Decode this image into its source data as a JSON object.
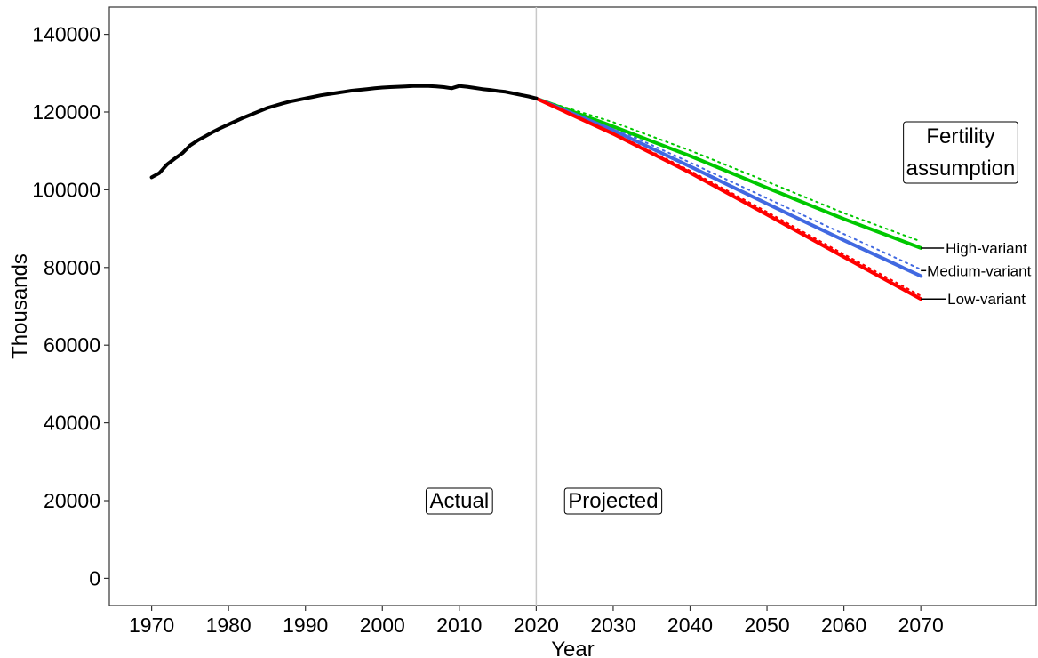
{
  "chart_data": {
    "type": "line",
    "xlabel": "Year",
    "ylabel": "Thousands",
    "xlim": [
      1964.5,
      2085
    ],
    "ylim": [
      -7000,
      147000
    ],
    "x_ticks": [
      1970,
      1980,
      1990,
      2000,
      2010,
      2020,
      2030,
      2040,
      2050,
      2060,
      2070
    ],
    "y_ticks": [
      0,
      20000,
      40000,
      60000,
      80000,
      100000,
      120000,
      140000
    ],
    "divider_year": 2020,
    "grid": false,
    "annotations": {
      "actual": "Actual",
      "projected": "Projected",
      "legend_title_line1": "Fertility",
      "legend_title_line2": "assumption"
    },
    "actual_series": {
      "color": "#000000",
      "x": [
        1970,
        1971,
        1972,
        1973,
        1974,
        1975,
        1976,
        1977,
        1978,
        1979,
        1980,
        1981,
        1982,
        1983,
        1984,
        1985,
        1986,
        1987,
        1988,
        1989,
        1990,
        1991,
        1992,
        1993,
        1994,
        1995,
        1996,
        1997,
        1998,
        1999,
        2000,
        2001,
        2002,
        2003,
        2004,
        2005,
        2006,
        2007,
        2008,
        2009,
        2010,
        2011,
        2012,
        2013,
        2014,
        2015,
        2016,
        2017,
        2018,
        2019,
        2020
      ],
      "y": [
        103200,
        104300,
        106500,
        108000,
        109400,
        111400,
        112700,
        113800,
        114900,
        115900,
        116800,
        117700,
        118600,
        119400,
        120200,
        121000,
        121600,
        122200,
        122700,
        123100,
        123500,
        123900,
        124300,
        124600,
        124900,
        125200,
        125500,
        125700,
        125900,
        126100,
        126300,
        126400,
        126500,
        126600,
        126700,
        126700,
        126700,
        126600,
        126400,
        126100,
        126700,
        126500,
        126200,
        125900,
        125700,
        125400,
        125200,
        124800,
        124400,
        124000,
        123500
      ]
    },
    "series": [
      {
        "name": "High-variant",
        "color": "#00c800",
        "x": [
          2020,
          2030,
          2040,
          2050,
          2060,
          2070
        ],
        "y": [
          123500,
          116300,
          108700,
          100500,
          92500,
          85000
        ],
        "dotted_y": [
          123500,
          117400,
          110100,
          102100,
          94000,
          86700
        ]
      },
      {
        "name": "Medium-variant",
        "color": "#4169e1",
        "x": [
          2020,
          2030,
          2040,
          2050,
          2060,
          2070
        ],
        "y": [
          123500,
          115300,
          106000,
          96400,
          87000,
          77800
        ],
        "dotted_y": [
          123500,
          116000,
          107000,
          97800,
          88600,
          79500
        ]
      },
      {
        "name": "Low-variant",
        "color": "#ff0000",
        "x": [
          2020,
          2030,
          2040,
          2050,
          2060,
          2070
        ],
        "y": [
          123500,
          114400,
          104400,
          93600,
          82700,
          71900
        ],
        "dotted_y": [
          123500,
          114700,
          104900,
          94300,
          83400,
          72700
        ]
      }
    ]
  }
}
